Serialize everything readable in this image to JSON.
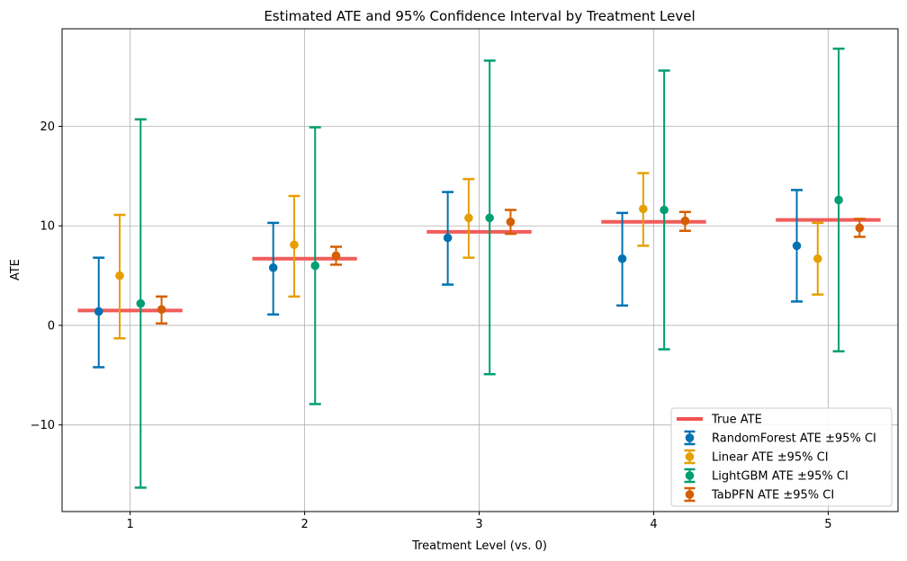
{
  "chart_data": {
    "type": "errorbar",
    "title": "Estimated ATE and 95% Confidence Interval by Treatment Level",
    "xlabel": "Treatment Level (vs. 0)",
    "ylabel": "ATE",
    "categories": [
      "1",
      "2",
      "3",
      "4",
      "5"
    ],
    "x": [
      1,
      2,
      3,
      4,
      5
    ],
    "xlim": [
      0.61,
      5.4
    ],
    "ylim": [
      -18.7,
      29.8
    ],
    "yticks": [
      -10,
      0,
      10,
      20
    ],
    "ytick_labels": [
      "−10",
      "0",
      "10",
      "20"
    ],
    "grid": true,
    "legend_position": "lower-right",
    "true_ate": {
      "name": "True ATE",
      "color": "#EF5350",
      "values": [
        1.5,
        6.7,
        9.4,
        10.4,
        10.6
      ]
    },
    "series": [
      {
        "name": "RandomForest ATE ±95% CI",
        "color": "#0072B2",
        "offset": -0.18,
        "values": [
          1.4,
          5.8,
          8.8,
          6.7,
          8.0
        ],
        "lower": [
          -4.2,
          1.1,
          4.1,
          2.0,
          2.4
        ],
        "upper": [
          6.8,
          10.3,
          13.4,
          11.3,
          13.6
        ]
      },
      {
        "name": "Linear ATE ±95% CI",
        "color": "#E69F00",
        "offset": -0.06,
        "values": [
          5.0,
          8.1,
          10.8,
          11.7,
          6.7
        ],
        "lower": [
          -1.3,
          2.9,
          6.8,
          8.0,
          3.1
        ],
        "upper": [
          11.1,
          13.0,
          14.7,
          15.3,
          10.3
        ]
      },
      {
        "name": "LightGBM ATE ±95% CI",
        "color": "#009E73",
        "offset": 0.06,
        "values": [
          2.2,
          6.0,
          10.8,
          11.6,
          12.6
        ],
        "lower": [
          -16.3,
          -7.9,
          -4.9,
          -2.4,
          -2.6
        ],
        "upper": [
          20.7,
          19.9,
          26.6,
          25.6,
          27.8
        ]
      },
      {
        "name": "TabPFN ATE ±95% CI",
        "color": "#D55E00",
        "offset": 0.18,
        "values": [
          1.6,
          7.0,
          10.4,
          10.5,
          9.8
        ],
        "lower": [
          0.2,
          6.1,
          9.2,
          9.5,
          8.9
        ],
        "upper": [
          2.9,
          7.9,
          11.6,
          11.4,
          10.7
        ]
      }
    ]
  }
}
